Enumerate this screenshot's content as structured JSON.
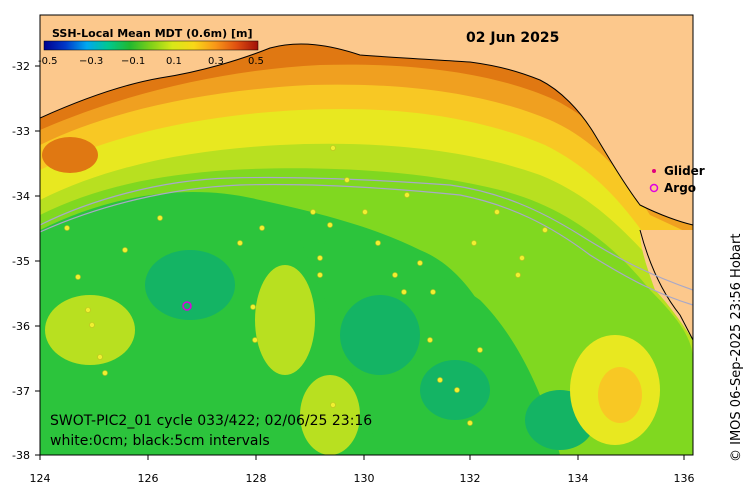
{
  "map": {
    "date": "02 Jun 2025",
    "colorbar": {
      "title": "SSH-Local Mean MDT (0.6m) [m]",
      "ticks": [
        "-0.5",
        "−0.3",
        "−0.1",
        "0.1",
        "0.3",
        "0.5"
      ],
      "range": [
        -0.5,
        0.5
      ],
      "colors": [
        "#00008f",
        "#0038c8",
        "#00a8f0",
        "#00c890",
        "#20b830",
        "#80d018",
        "#d8e818",
        "#f8d818",
        "#f89818",
        "#e05010",
        "#a01008"
      ]
    },
    "legend": {
      "glider_label": "Glider",
      "argo_label": "Argo",
      "glider_color": "#e0007c",
      "argo_color": "#e000e0"
    },
    "info_line1": "SWOT-PIC2_01 cycle 033/422; 02/06/25 23:16",
    "info_line2": "white:0cm; black:5cm intervals",
    "credit": "© IMOS 06-Sep-2025 23:56 Hobart",
    "x_ticks": [
      "124",
      "126",
      "128",
      "130",
      "132",
      "134",
      "136"
    ],
    "y_ticks": [
      "-32",
      "-33",
      "-34",
      "-35",
      "-36",
      "-37",
      "-38"
    ],
    "extent": {
      "lon_min": 124,
      "lon_max": 136.5,
      "lat_min": -38.1,
      "lat_max": -31.4
    },
    "colors": {
      "land": "#fcc88c",
      "deep_orange": "#e07812",
      "orange": "#f0a020",
      "yellow_orange": "#f8c824",
      "yellow": "#e8e820",
      "lime": "#b8e020",
      "light_green": "#80d820",
      "green": "#2cc43c",
      "teal_green": "#14b464",
      "frame": "#000000"
    }
  }
}
